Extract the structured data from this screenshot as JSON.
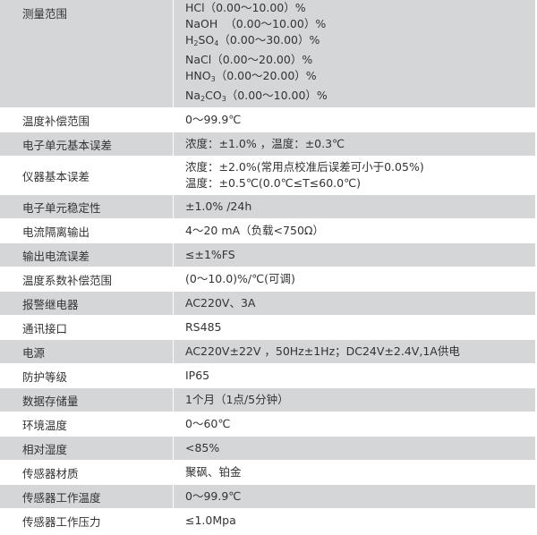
{
  "rows": [
    {
      "label": "测量范围",
      "lines": [
        {
          "pre": "HCl",
          "sub1": "",
          "mid": "",
          "sub2": "",
          "post": "（0.00～10.00）%"
        },
        {
          "pre": "NaOH",
          "sub1": "",
          "mid": "",
          "sub2": "",
          "post": "  （0.00～10.00）%"
        },
        {
          "pre": "H",
          "sub1": "2",
          "mid": "SO",
          "sub2": "4",
          "post": "（0.00～30.00）%"
        },
        {
          "pre": "NaCl",
          "sub1": "",
          "mid": "",
          "sub2": "",
          "post": "（0.00～20.00）%"
        },
        {
          "pre": "HNO",
          "sub1": "3",
          "mid": "",
          "sub2": "",
          "post": "（0.00～20.00）%"
        },
        {
          "pre": "Na",
          "sub1": "2",
          "mid": "CO",
          "sub2": "3",
          "post": "（0.00～10.00）%"
        }
      ]
    },
    {
      "label": "温度补偿范围",
      "value": "0～99.9℃"
    },
    {
      "label": "电子单元基本误差",
      "value": "浓度：±1.0% ，温度：±0.3℃"
    },
    {
      "label": "仪器基本误差",
      "value": "浓度：±2.0%(常用点校准后误差可小于0.05%)",
      "value2": "温度：±0.5℃(0.0℃≤T≤60.0℃)"
    },
    {
      "label": "电子单元稳定性",
      "value": "±1.0% /24h"
    },
    {
      "label": "电流隔离输出",
      "value": "4～20 mA（负载<750Ω）"
    },
    {
      "label": "输出电流误差",
      "value": "≤±1%FS"
    },
    {
      "label": "温度系数补偿范围",
      "value": "(0～10.0)%/℃(可调)"
    },
    {
      "label": "报警继电器",
      "value": "AC220V、3A"
    },
    {
      "label": "通讯接口",
      "value": "RS485"
    },
    {
      "label": "电源",
      "value": "AC220V±22V ，50Hz±1Hz；DC24V±2.4V,1A供电"
    },
    {
      "label": "防护等级",
      "value": "IP65"
    },
    {
      "label": "数据存储量",
      "value": "1个月（1点/5分钟）"
    },
    {
      "label": "环境温度",
      "value": "0～60℃"
    },
    {
      "label": "相对湿度",
      "value": "<85%"
    },
    {
      "label": "传感器材质",
      "value": "聚砜、铂金"
    },
    {
      "label": "传感器工作温度",
      "value": "0～99.9℃"
    },
    {
      "label": "传感器工作压力",
      "value": "≤1.0Mpa"
    }
  ]
}
